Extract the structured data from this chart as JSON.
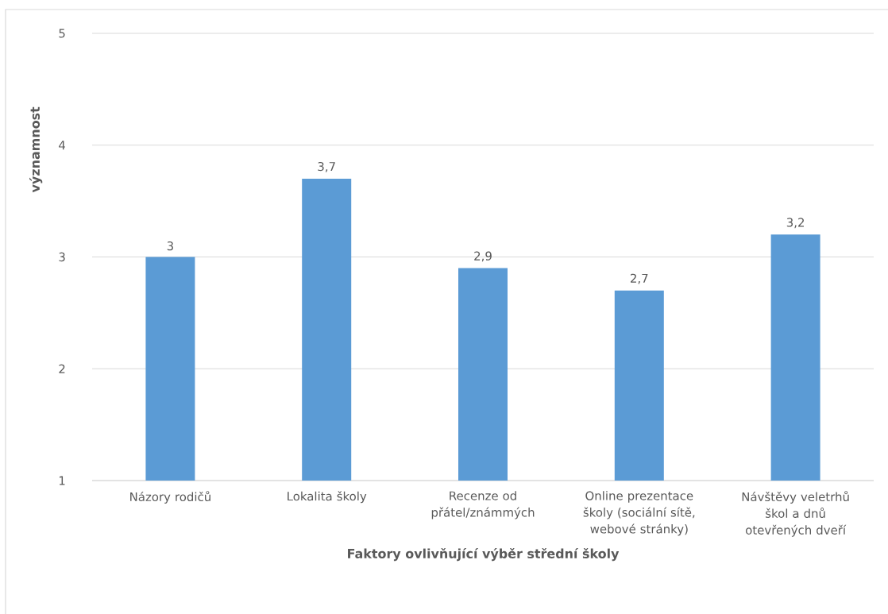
{
  "chart_data": {
    "type": "bar",
    "categories": [
      "Názory rodičů",
      "Lokalita školy",
      "Recenze od přátel/známmých",
      "Online prezentace školy (sociální sítě, webové stránky)",
      "Návštěvy veletrhů škol a dnů otevřených dveří"
    ],
    "values": [
      3,
      3.7,
      2.9,
      2.7,
      3.2
    ],
    "value_labels": [
      "3",
      "3,7",
      "2,9",
      "2,7",
      "3,2"
    ],
    "color": "#5b9bd5",
    "xlabel": "Faktory ovlivňující výběr střední školy",
    "ylabel": "významnost",
    "ylim": [
      1,
      5
    ],
    "yticks": [
      1,
      2,
      3,
      4,
      5
    ],
    "grid": "y"
  }
}
